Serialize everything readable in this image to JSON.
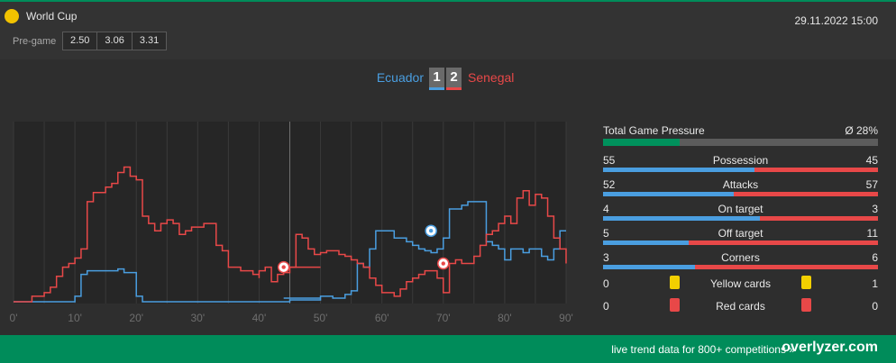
{
  "header": {
    "competition": "World Cup",
    "competition_icon": "yellow-ball-icon",
    "datetime": "29.11.2022 15:00",
    "pregame_label": "Pre-game",
    "odds": [
      "2.50",
      "3.06",
      "3.31"
    ]
  },
  "match": {
    "home_team": "Ecuador",
    "away_team": "Senegal",
    "home_score": "1",
    "away_score": "2",
    "home_color": "#4a9ee0",
    "away_color": "#e84848"
  },
  "chart_data": {
    "type": "line",
    "x_tick_labels": [
      "0'",
      "10'",
      "20'",
      "30'",
      "40'",
      "50'",
      "60'",
      "70'",
      "80'",
      "90'"
    ],
    "xlim": [
      0,
      90
    ],
    "ylim": [
      0,
      100
    ],
    "series": [
      {
        "name": "Ecuador",
        "color": "#4a9ee0",
        "points": [
          [
            0,
            1
          ],
          [
            9,
            1
          ],
          [
            10,
            4
          ],
          [
            11,
            6
          ],
          [
            11,
            16
          ],
          [
            12,
            16
          ],
          [
            12,
            18
          ],
          [
            17,
            18
          ],
          [
            17,
            19
          ],
          [
            18,
            19
          ],
          [
            18,
            17
          ],
          [
            19,
            17
          ],
          [
            20,
            4
          ],
          [
            21,
            1
          ],
          [
            30,
            1
          ],
          [
            44,
            1
          ],
          [
            45,
            2
          ],
          [
            49,
            2
          ],
          [
            50,
            3
          ],
          [
            50,
            4
          ],
          [
            51,
            4
          ],
          [
            52,
            3
          ],
          [
            53,
            3
          ],
          [
            54,
            5
          ],
          [
            55,
            7
          ],
          [
            56,
            16
          ],
          [
            56,
            22
          ],
          [
            57,
            20
          ],
          [
            58,
            22
          ],
          [
            58,
            30
          ],
          [
            59,
            30
          ],
          [
            59,
            40
          ],
          [
            61,
            40
          ],
          [
            62,
            36
          ],
          [
            63,
            36
          ],
          [
            64,
            34
          ],
          [
            65,
            32
          ],
          [
            66,
            30
          ],
          [
            67,
            29
          ],
          [
            68,
            28
          ],
          [
            69,
            30
          ],
          [
            70,
            36
          ],
          [
            71,
            44
          ],
          [
            71,
            52
          ],
          [
            72,
            52
          ],
          [
            73,
            54
          ],
          [
            74,
            54
          ],
          [
            74,
            56
          ],
          [
            75,
            56
          ],
          [
            76,
            56
          ],
          [
            77,
            50
          ],
          [
            77,
            34
          ],
          [
            78,
            32
          ],
          [
            79,
            30
          ],
          [
            80,
            24
          ],
          [
            81,
            30
          ],
          [
            82,
            30
          ],
          [
            83,
            28
          ],
          [
            84,
            28
          ],
          [
            84,
            30
          ],
          [
            85,
            30
          ],
          [
            86,
            26
          ],
          [
            87,
            24
          ],
          [
            88,
            30
          ],
          [
            89,
            36
          ],
          [
            89,
            40
          ],
          [
            90,
            40
          ]
        ],
        "partial_segment": [
          [
            44,
            3
          ],
          [
            50,
            3
          ]
        ]
      },
      {
        "name": "Senegal",
        "color": "#e84848",
        "points": [
          [
            0,
            1
          ],
          [
            2,
            1
          ],
          [
            3,
            4
          ],
          [
            5,
            6
          ],
          [
            6,
            9
          ],
          [
            7,
            15
          ],
          [
            8,
            20
          ],
          [
            9,
            22
          ],
          [
            10,
            25
          ],
          [
            11,
            30
          ],
          [
            12,
            56
          ],
          [
            13,
            61
          ],
          [
            14,
            61
          ],
          [
            15,
            64
          ],
          [
            16,
            66
          ],
          [
            17,
            72
          ],
          [
            18,
            75
          ],
          [
            19,
            70
          ],
          [
            20,
            68
          ],
          [
            21,
            48
          ],
          [
            22,
            44
          ],
          [
            23,
            40
          ],
          [
            24,
            44
          ],
          [
            25,
            46
          ],
          [
            26,
            44
          ],
          [
            27,
            38
          ],
          [
            28,
            40
          ],
          [
            29,
            42
          ],
          [
            30,
            42
          ],
          [
            31,
            44
          ],
          [
            32,
            44
          ],
          [
            33,
            32
          ],
          [
            34,
            29
          ],
          [
            35,
            20
          ],
          [
            36,
            20
          ],
          [
            37,
            18
          ],
          [
            38,
            18
          ],
          [
            39,
            16
          ],
          [
            40,
            14
          ],
          [
            40,
            18
          ],
          [
            41,
            20
          ],
          [
            42,
            12
          ],
          [
            43,
            16
          ],
          [
            44,
            17
          ],
          [
            45,
            20
          ],
          [
            46,
            38
          ],
          [
            47,
            36
          ],
          [
            48,
            30
          ],
          [
            49,
            27
          ],
          [
            50,
            28
          ],
          [
            51,
            29
          ],
          [
            52,
            29
          ],
          [
            53,
            27
          ],
          [
            54,
            26
          ],
          [
            55,
            24
          ],
          [
            56,
            22
          ],
          [
            57,
            20
          ],
          [
            58,
            14
          ],
          [
            59,
            10
          ],
          [
            60,
            6
          ],
          [
            61,
            6
          ],
          [
            62,
            4
          ],
          [
            63,
            8
          ],
          [
            64,
            12
          ],
          [
            65,
            14
          ],
          [
            66,
            16
          ],
          [
            67,
            18
          ],
          [
            68,
            18
          ],
          [
            69,
            14
          ],
          [
            70,
            6
          ],
          [
            71,
            22
          ],
          [
            72,
            24
          ],
          [
            73,
            22
          ],
          [
            74,
            22
          ],
          [
            75,
            26
          ],
          [
            76,
            32
          ],
          [
            77,
            38
          ],
          [
            78,
            40
          ],
          [
            79,
            44
          ],
          [
            80,
            48
          ],
          [
            81,
            44
          ],
          [
            82,
            58
          ],
          [
            83,
            62
          ],
          [
            84,
            54
          ],
          [
            85,
            60
          ],
          [
            86,
            58
          ],
          [
            87,
            48
          ],
          [
            88,
            36
          ],
          [
            89,
            30
          ],
          [
            90,
            22
          ]
        ],
        "partial_segment": [
          [
            44,
            20
          ],
          [
            50,
            20
          ]
        ]
      }
    ],
    "goal_markers": [
      {
        "team": "Senegal",
        "minute": 44,
        "level": 20
      },
      {
        "team": "Ecuador",
        "minute": 68,
        "level": 40
      },
      {
        "team": "Senegal",
        "minute": 70,
        "level": 22
      }
    ]
  },
  "stats": {
    "pressure": {
      "label": "Total Game Pressure",
      "value": "Ø 28%",
      "fraction": 0.28
    },
    "rows": [
      {
        "label": "Possession",
        "home": "55",
        "away": "45",
        "home_fraction": 0.55
      },
      {
        "label": "Attacks",
        "home": "52",
        "away": "57",
        "home_fraction": 0.477
      },
      {
        "label": "On target",
        "home": "4",
        "away": "3",
        "home_fraction": 0.571
      },
      {
        "label": "Off target",
        "home": "5",
        "away": "11",
        "home_fraction": 0.3125
      },
      {
        "label": "Corners",
        "home": "3",
        "away": "6",
        "home_fraction": 0.333
      }
    ],
    "cards": [
      {
        "label": "Yellow cards",
        "home": "0",
        "away": "1",
        "color": "yellow"
      },
      {
        "label": "Red cards",
        "home": "0",
        "away": "0",
        "color": "red"
      }
    ]
  },
  "footer": {
    "tagline": "live trend data for 800+ competitions »",
    "brand": "overlyzer.com"
  }
}
